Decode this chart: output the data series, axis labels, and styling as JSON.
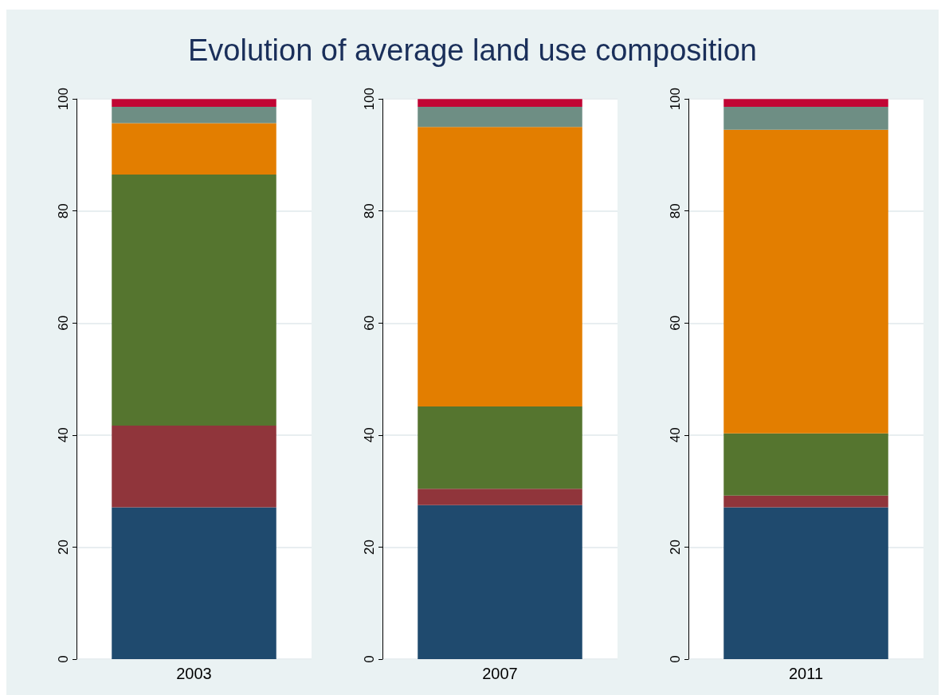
{
  "chart_data": [
    {
      "type": "bar",
      "title": "Evolution of average land use composition",
      "categories": [
        "2003"
      ],
      "stacked": true,
      "ylim": [
        0,
        100
      ],
      "yticks": [
        0,
        20,
        40,
        60,
        80,
        100
      ],
      "grid": "y",
      "series": [
        {
          "color": "#1f4a6e",
          "values": [
            27.1
          ]
        },
        {
          "color": "#90353b",
          "values": [
            14.6
          ]
        },
        {
          "color": "#55752f",
          "values": [
            44.8
          ]
        },
        {
          "color": "#e37e00",
          "values": [
            9.2
          ]
        },
        {
          "color": "#6e8e84",
          "values": [
            2.9
          ]
        },
        {
          "color": "#c10534",
          "values": [
            1.4
          ]
        }
      ]
    },
    {
      "type": "bar",
      "categories": [
        "2007"
      ],
      "stacked": true,
      "ylim": [
        0,
        100
      ],
      "yticks": [
        0,
        20,
        40,
        60,
        80,
        100
      ],
      "grid": "y",
      "series": [
        {
          "color": "#1f4a6e",
          "values": [
            27.5
          ]
        },
        {
          "color": "#90353b",
          "values": [
            2.9
          ]
        },
        {
          "color": "#55752f",
          "values": [
            14.7
          ]
        },
        {
          "color": "#e37e00",
          "values": [
            49.9
          ]
        },
        {
          "color": "#6e8e84",
          "values": [
            3.6
          ]
        },
        {
          "color": "#c10534",
          "values": [
            1.4
          ]
        }
      ]
    },
    {
      "type": "bar",
      "categories": [
        "2011"
      ],
      "stacked": true,
      "ylim": [
        0,
        100
      ],
      "yticks": [
        0,
        20,
        40,
        60,
        80,
        100
      ],
      "grid": "y",
      "series": [
        {
          "color": "#1f4a6e",
          "values": [
            27.1
          ]
        },
        {
          "color": "#90353b",
          "values": [
            2.1
          ]
        },
        {
          "color": "#55752f",
          "values": [
            11.1
          ]
        },
        {
          "color": "#e37e00",
          "values": [
            54.2
          ]
        },
        {
          "color": "#6e8e84",
          "values": [
            4.1
          ]
        },
        {
          "color": "#c10534",
          "values": [
            1.4
          ]
        }
      ]
    }
  ]
}
